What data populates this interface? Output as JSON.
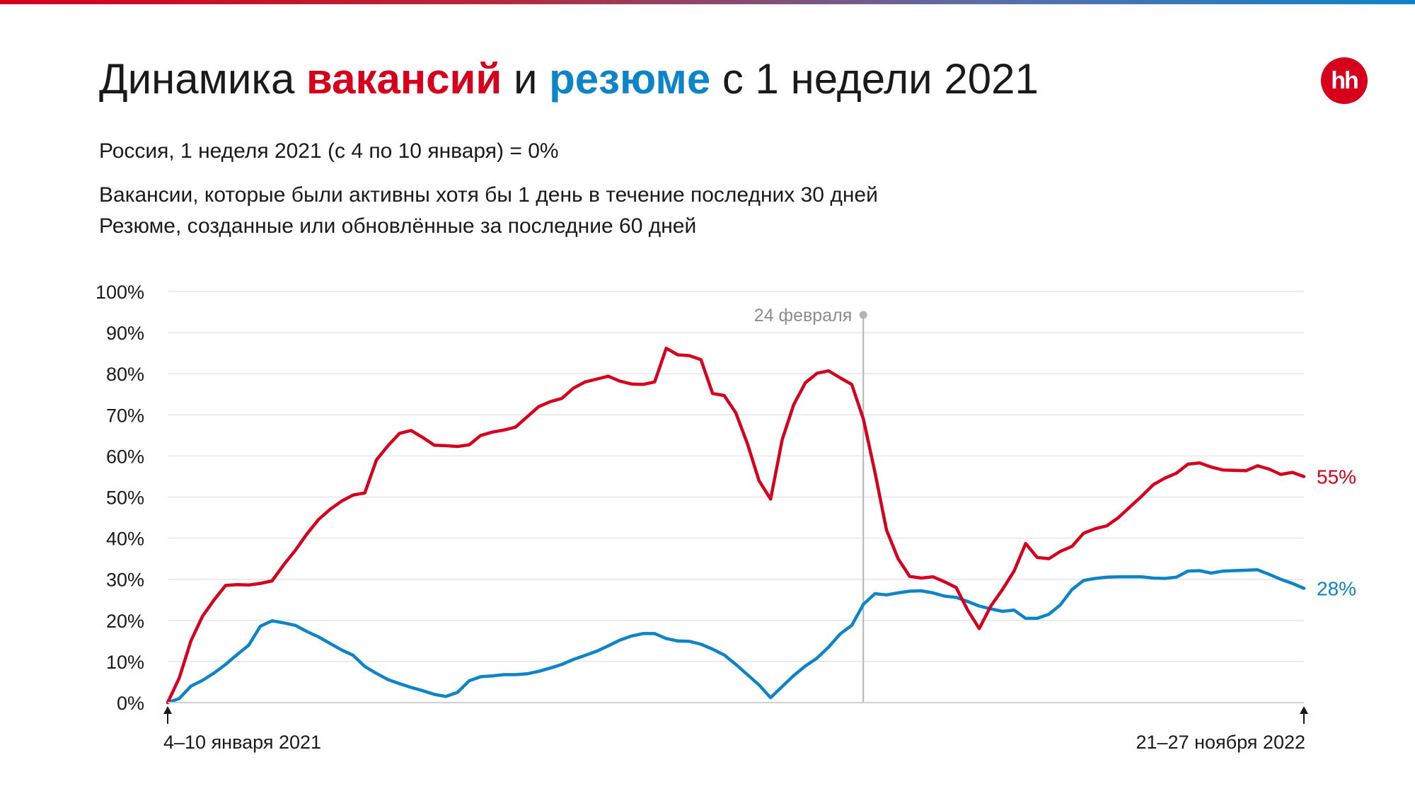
{
  "header": {
    "title_part1": "Динамика ",
    "title_vacancies": "вакансий",
    "title_part2": " и ",
    "title_resumes": "резюме",
    "title_part3": " с 1 недели 2021",
    "logo_text": "hh",
    "subtitle_1": "Россия, 1 неделя 2021 (с 4 по 10 января) = 0%",
    "subtitle_2": "Вакансии, которые были активны хотя бы 1 день в течение последних 30 дней",
    "subtitle_3": "Резюме, созданные или обновлённые за последние 60 дней"
  },
  "colors": {
    "vacancies": "#d6001c",
    "resumes": "#0d84c8",
    "grid": "#e6e6e6",
    "annotation": "#b3b3b3"
  },
  "chart_data": {
    "type": "line",
    "ylim": [
      0,
      100
    ],
    "y_ticks": [
      "0%",
      "10%",
      "20%",
      "30%",
      "40%",
      "50%",
      "60%",
      "70%",
      "80%",
      "90%",
      "100%"
    ],
    "x_start_label": "4–10 января 2021",
    "x_end_label": "21–27 ноября 2022",
    "annotation": {
      "label": "24 февраля",
      "x": 60
    },
    "grid": true,
    "series": [
      {
        "name": "вакансий",
        "end_label": "55%",
        "values": [
          0,
          6,
          15,
          21,
          25,
          28.5,
          28.7,
          28.6,
          29,
          29.6,
          33.5,
          37,
          41,
          44.5,
          47,
          49,
          50.5,
          51,
          59,
          62.5,
          65.5,
          66.2,
          64.5,
          62.6,
          62.5,
          62.3,
          62.7,
          65,
          65.8,
          66.3,
          67,
          69.5,
          72,
          73.2,
          74,
          76.5,
          78,
          78.7,
          79.4,
          78.2,
          77.5,
          77.4,
          78,
          86.2,
          84.6,
          84.4,
          83.4,
          75.2,
          74.7,
          70.5,
          63,
          54,
          49.5,
          64,
          72.5,
          77.8,
          80.1,
          80.7,
          79,
          77.4,
          69,
          56,
          42,
          35,
          30.7,
          30.3,
          30.6,
          29.4,
          28,
          22.5,
          18,
          23.5,
          27.5,
          32,
          38.7,
          35.3,
          35,
          36.8,
          38,
          41.2,
          42.3,
          43,
          45,
          47.6,
          50.2,
          53,
          54.6,
          55.8,
          58,
          58.3,
          57.3,
          56.6,
          56.5,
          56.4,
          57.6,
          56.8,
          55.5,
          56,
          55
        ]
      },
      {
        "name": "резюме",
        "end_label": "28%",
        "values": [
          0,
          1,
          4,
          5.4,
          7.2,
          9.3,
          11.7,
          14,
          18.6,
          19.9,
          19.4,
          18.8,
          17.3,
          16,
          14.4,
          12.8,
          11.5,
          8.8,
          7.1,
          5.6,
          4.6,
          3.7,
          2.9,
          2,
          1.5,
          2.5,
          5.3,
          6.3,
          6.5,
          6.8,
          6.8,
          7,
          7.6,
          8.4,
          9.3,
          10.5,
          11.5,
          12.5,
          13.8,
          15.2,
          16.2,
          16.8,
          16.8,
          15.6,
          15,
          14.9,
          14.2,
          13,
          11.6,
          9.3,
          6.8,
          4.3,
          1.2,
          3.9,
          6.6,
          8.9,
          10.8,
          13.5,
          16.7,
          18.8,
          23.9,
          26.5,
          26.2,
          26.7,
          27.1,
          27.2,
          26.7,
          25.9,
          25.6,
          24.6,
          23.5,
          22.8,
          22.2,
          22.5,
          20.5,
          20.5,
          21.5,
          23.8,
          27.5,
          29.7,
          30.2,
          30.5,
          30.6,
          30.6,
          30.6,
          30.3,
          30.2,
          30.5,
          32,
          32.1,
          31.5,
          32,
          32.1,
          32.2,
          32.3,
          31.2,
          30,
          29,
          27.8
        ]
      }
    ]
  }
}
